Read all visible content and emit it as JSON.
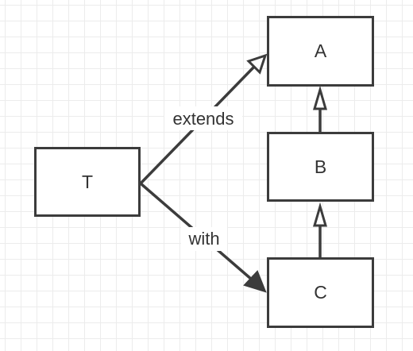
{
  "nodes": {
    "T": "T",
    "A": "A",
    "B": "B",
    "C": "C"
  },
  "edges": {
    "extends_label": "extends",
    "with_label": "with"
  },
  "colors": {
    "stroke": "#3c3c3c",
    "text": "#333333",
    "grid": "#ececec"
  }
}
